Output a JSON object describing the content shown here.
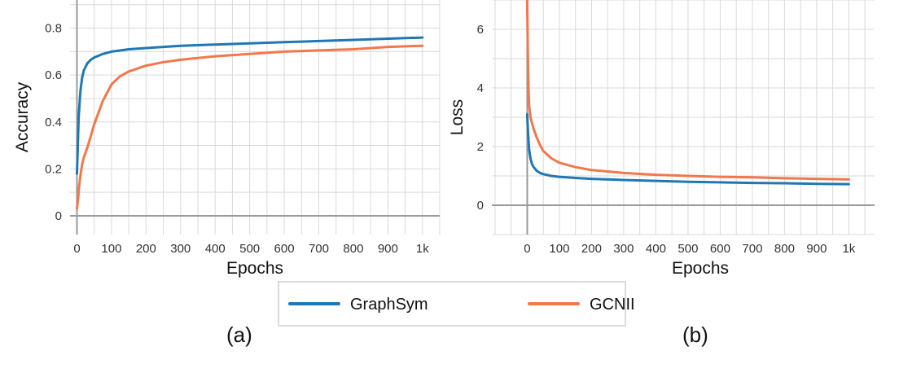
{
  "legend": {
    "items": [
      {
        "label": "GraphSym",
        "color": "#1f77b4"
      },
      {
        "label": "GCNII",
        "color": "#f2784b"
      }
    ]
  },
  "chart_data": [
    {
      "panel_label": "(a)",
      "type": "line",
      "xlabel": "Epochs",
      "ylabel": "Accuracy",
      "xlim": [
        -20,
        1050
      ],
      "ylim": [
        -0.08,
        0.92
      ],
      "xticks": [
        0,
        100,
        200,
        300,
        400,
        500,
        600,
        700,
        800,
        900,
        1000
      ],
      "xtick_labels": [
        "0",
        "100",
        "200",
        "300",
        "400",
        "500",
        "600",
        "700",
        "800",
        "900",
        "1k"
      ],
      "yticks": [
        0,
        0.2,
        0.4,
        0.6,
        0.8
      ],
      "ytick_labels": [
        "0",
        "0.2",
        "0.4",
        "0.6",
        "0.8"
      ],
      "grid": true,
      "series": [
        {
          "name": "GraphSym",
          "color": "#1f77b4",
          "x": [
            0,
            5,
            10,
            15,
            20,
            30,
            40,
            50,
            75,
            100,
            150,
            200,
            300,
            400,
            500,
            600,
            700,
            800,
            900,
            1000
          ],
          "y": [
            0.18,
            0.42,
            0.53,
            0.59,
            0.62,
            0.65,
            0.665,
            0.675,
            0.69,
            0.7,
            0.71,
            0.715,
            0.725,
            0.73,
            0.735,
            0.74,
            0.745,
            0.75,
            0.755,
            0.76
          ]
        },
        {
          "name": "GCNII",
          "color": "#f2784b",
          "x": [
            0,
            3,
            6,
            10,
            15,
            20,
            25,
            30,
            40,
            50,
            60,
            75,
            100,
            125,
            150,
            200,
            250,
            300,
            400,
            500,
            600,
            700,
            800,
            900,
            1000
          ],
          "y": [
            0.03,
            0.07,
            0.12,
            0.17,
            0.22,
            0.25,
            0.27,
            0.29,
            0.34,
            0.39,
            0.43,
            0.49,
            0.56,
            0.595,
            0.615,
            0.64,
            0.655,
            0.665,
            0.68,
            0.69,
            0.7,
            0.705,
            0.71,
            0.72,
            0.725
          ]
        }
      ]
    },
    {
      "panel_label": "(b)",
      "type": "line",
      "xlabel": "Epochs",
      "ylabel": "Loss",
      "xlim": [
        -110,
        1080
      ],
      "ylim": [
        -1.0,
        7.0
      ],
      "xticks": [
        0,
        100,
        200,
        300,
        400,
        500,
        600,
        700,
        800,
        900,
        1000
      ],
      "xtick_labels": [
        "0",
        "100",
        "200",
        "300",
        "400",
        "500",
        "600",
        "700",
        "800",
        "900",
        "1k"
      ],
      "yticks": [
        0,
        2,
        4,
        6
      ],
      "ytick_labels": [
        "0",
        "2",
        "4",
        "6"
      ],
      "grid": true,
      "series": [
        {
          "name": "GraphSym",
          "color": "#1f77b4",
          "x": [
            0,
            3,
            6,
            10,
            15,
            20,
            30,
            40,
            50,
            75,
            100,
            150,
            200,
            300,
            400,
            500,
            600,
            700,
            800,
            900,
            1000
          ],
          "y": [
            3.1,
            2.4,
            1.9,
            1.6,
            1.4,
            1.3,
            1.17,
            1.1,
            1.06,
            1.0,
            0.97,
            0.93,
            0.9,
            0.86,
            0.83,
            0.8,
            0.78,
            0.76,
            0.75,
            0.73,
            0.72
          ]
        },
        {
          "name": "GCNII",
          "color": "#f2784b",
          "x": [
            0,
            2,
            4,
            6,
            10,
            15,
            20,
            30,
            40,
            50,
            75,
            100,
            150,
            200,
            300,
            400,
            500,
            600,
            700,
            800,
            900,
            1000
          ],
          "y": [
            7.0,
            5.2,
            4.0,
            3.4,
            3.0,
            2.8,
            2.6,
            2.3,
            2.05,
            1.85,
            1.6,
            1.45,
            1.3,
            1.2,
            1.1,
            1.04,
            1.0,
            0.97,
            0.95,
            0.92,
            0.9,
            0.88
          ]
        }
      ]
    }
  ]
}
